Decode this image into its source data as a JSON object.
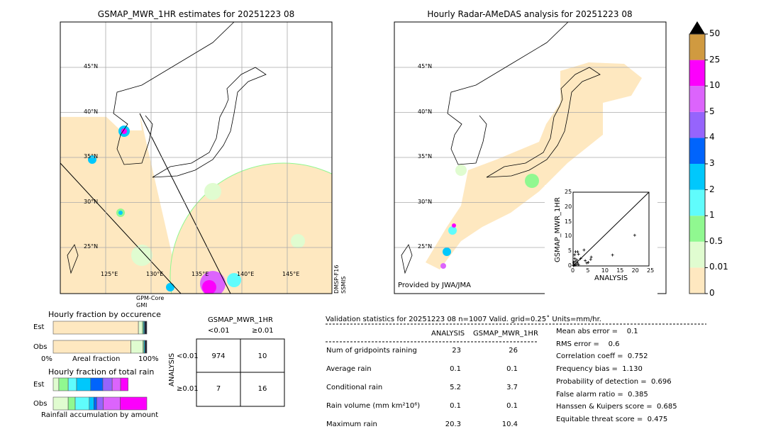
{
  "left_map": {
    "title": "GSMAP_MWR_1HR estimates for 20251223 08",
    "lat_labels": [
      "45°N",
      "40°N",
      "35°N",
      "30°N",
      "25°N"
    ],
    "lon_labels": [
      "125°E",
      "130°E",
      "135°E",
      "140°E",
      "145°E"
    ],
    "swath_labels": [
      "GPM-Core\nGMI",
      "DMSP-F16\nSSMIS"
    ]
  },
  "right_map": {
    "title": "Hourly Radar-AMeDAS analysis for 20251223 08",
    "lat_labels": [
      "45°N",
      "40°N",
      "35°N",
      "30°N",
      "25°N"
    ],
    "lon_labels": [
      "125°E",
      "130°E",
      "135°E"
    ],
    "credit": "Provided by JWA/JMA"
  },
  "colorbar": {
    "ticks": [
      "0",
      "0.01",
      "0.5",
      "1",
      "2",
      "3",
      "4",
      "5",
      "10",
      "25",
      "50"
    ],
    "colors": [
      "#fee8c0",
      "#e0fcd0",
      "#90f890",
      "#60fcfc",
      "#00c8fc",
      "#0064fc",
      "#9664fc",
      "#dc64fc",
      "#fc00fc",
      "#d09a40"
    ]
  },
  "chart_data": [
    {
      "type": "scatter",
      "xlabel": "ANALYSIS",
      "ylabel": "GSMAP_MWR_1HR",
      "xlim": [
        0,
        25
      ],
      "ylim": [
        0,
        25
      ],
      "xticks": [
        "0",
        "5",
        "10",
        "15",
        "20",
        "25"
      ],
      "yticks": [
        "0",
        "5",
        "10",
        "15",
        "20",
        "25"
      ],
      "points": [
        [
          20.3,
          10.4
        ],
        [
          13,
          3.7
        ],
        [
          3.6,
          5.4
        ],
        [
          6,
          3
        ],
        [
          5.8,
          2.2
        ],
        [
          5,
          1.2
        ],
        [
          4.5,
          1
        ],
        [
          4,
          1.8
        ],
        [
          2.5,
          2.5
        ],
        [
          1.8,
          4
        ],
        [
          1.5,
          4.8
        ],
        [
          0.8,
          4.8
        ],
        [
          0.5,
          3.8
        ],
        [
          0.6,
          2.5
        ],
        [
          1.2,
          2
        ],
        [
          1.5,
          1
        ],
        [
          0.3,
          0.5
        ],
        [
          0.5,
          0.2
        ],
        [
          1,
          0.5
        ],
        [
          0.2,
          1.2
        ],
        [
          1.8,
          0.4
        ],
        [
          0.7,
          1.5
        ],
        [
          0.1,
          0.1
        ]
      ]
    },
    {
      "type": "bar",
      "title": "Hourly fraction by occurence",
      "xlabel": "Areal fraction",
      "categories": [
        "Est",
        "Obs"
      ],
      "xticks": [
        "0%",
        "100%"
      ],
      "stacked_fractions": {
        "Est": [
          0.91,
          0.045,
          0.01,
          0.01,
          0.025
        ],
        "Obs": [
          0.83,
          0.13,
          0.01,
          0.01,
          0.02
        ]
      }
    },
    {
      "type": "bar",
      "title": "Hourly fraction of total rain",
      "xlabel": "Rainfall accumulation by amount",
      "categories": [
        "Est",
        "Obs"
      ],
      "stacked_fractions": {
        "Est": [
          0.06,
          0.1,
          0.09,
          0.15,
          0.13,
          0.1,
          0.09,
          0.08
        ],
        "Obs": [
          0.16,
          0.075,
          0.15,
          0.05,
          0.03,
          0.07,
          0.18,
          0.285
        ]
      }
    },
    {
      "type": "table",
      "title": "GSMAP_MWR_1HR",
      "col_headers": [
        "<0.01",
        "≥0.01"
      ],
      "row_label": "ANALYSIS",
      "row_headers": [
        "<0.01",
        "≥0.01"
      ],
      "cells": [
        [
          "974",
          "10"
        ],
        [
          "7",
          "16"
        ]
      ]
    }
  ],
  "stats": {
    "header": "Validation statistics for 20251223 08  n=1007 Valid. grid=0.25˚ Units=mm/hr.",
    "col_a": "ANALYSIS",
    "col_b": "GSMAP_MWR_1HR",
    "rows": [
      {
        "label": "Num of gridpoints raining",
        "a": "23",
        "b": "26"
      },
      {
        "label": "Average rain",
        "a": "0.1",
        "b": "0.1"
      },
      {
        "label": "Conditional rain",
        "a": "5.2",
        "b": "3.7"
      },
      {
        "label": "Rain volume (mm km²10⁶)",
        "a": "0.1",
        "b": "0.1"
      },
      {
        "label": "Maximum rain",
        "a": "20.3",
        "b": "10.4"
      }
    ],
    "scores": [
      "Mean abs error =    0.1",
      "RMS error =    0.6",
      "Correlation coeff =  0.752",
      "Frequency bias =  1.130",
      "Probability of detection =  0.696",
      "False alarm ratio =  0.385",
      "Hanssen & Kuipers score =  0.685",
      "Equitable threat score =  0.475"
    ]
  }
}
